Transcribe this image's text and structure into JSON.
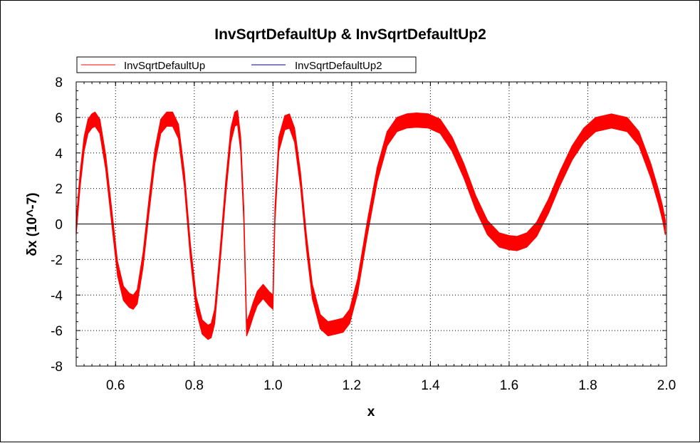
{
  "chart_data": {
    "type": "line",
    "title": "InvSqrtDefaultUp & InvSqrtDefaultUp2",
    "xlabel": "x",
    "ylabel": "δx (10^-7)",
    "xlim": [
      0.5,
      2.0
    ],
    "ylim": [
      -8,
      8
    ],
    "x_ticks": [
      "0.6",
      "0.8",
      "1.0",
      "1.2",
      "1.4",
      "1.6",
      "1.8",
      "2.0"
    ],
    "x_tick_values": [
      0.6,
      0.8,
      1.0,
      1.2,
      1.4,
      1.6,
      1.8,
      2.0
    ],
    "y_ticks": [
      "8",
      "6",
      "4",
      "2",
      "0",
      "-2",
      "-4",
      "-6",
      "-8"
    ],
    "y_tick_values": [
      8,
      6,
      4,
      2,
      0,
      -2,
      -4,
      -6,
      -8
    ],
    "grid": true,
    "zero_line": true,
    "legend_position": "top-left",
    "series": [
      {
        "name": "InvSqrtDefaultUp",
        "color": "#ff0000",
        "band_width": 0.8,
        "x": [
          0.5,
          0.51,
          0.52,
          0.53,
          0.54,
          0.548,
          0.56,
          0.575,
          0.59,
          0.605,
          0.62,
          0.635,
          0.645,
          0.655,
          0.67,
          0.685,
          0.7,
          0.715,
          0.73,
          0.745,
          0.76,
          0.775,
          0.79,
          0.805,
          0.82,
          0.835,
          0.843,
          0.852,
          0.865,
          0.88,
          0.893,
          0.903,
          0.91,
          0.918,
          0.926,
          0.933,
          0.94,
          0.95,
          0.96,
          0.975,
          0.99,
          1.0,
          1.005,
          1.015,
          1.03,
          1.042,
          1.055,
          1.07,
          1.085,
          1.1,
          1.12,
          1.14,
          1.16,
          1.178,
          1.195,
          1.215,
          1.24,
          1.265,
          1.29,
          1.315,
          1.34,
          1.365,
          1.395,
          1.425,
          1.455,
          1.485,
          1.515,
          1.545,
          1.575,
          1.6,
          1.62,
          1.645,
          1.67,
          1.7,
          1.73,
          1.76,
          1.79,
          1.82,
          1.86,
          1.9,
          1.93,
          1.96,
          1.98,
          1.99,
          1.997
        ],
        "y": [
          -0.2,
          2.5,
          4.5,
          5.5,
          5.8,
          5.9,
          5.5,
          3.5,
          0.5,
          -2.5,
          -3.9,
          -4.3,
          -4.4,
          -4.1,
          -2.0,
          1.0,
          3.8,
          5.5,
          5.9,
          5.9,
          5.2,
          2.5,
          -1.5,
          -4.5,
          -5.8,
          -6.1,
          -6.0,
          -5.2,
          -2.0,
          2.0,
          5.0,
          5.9,
          6.0,
          4.5,
          0.5,
          -5.9,
          -5.5,
          -4.8,
          -4.2,
          -3.8,
          -4.2,
          -4.4,
          0.5,
          4.5,
          5.7,
          5.8,
          5.0,
          2.5,
          -1.0,
          -3.8,
          -5.5,
          -5.9,
          -5.8,
          -5.7,
          -5.2,
          -3.5,
          -0.2,
          2.8,
          4.8,
          5.6,
          5.8,
          5.85,
          5.8,
          5.5,
          4.5,
          3.0,
          1.2,
          -0.2,
          -0.9,
          -1.05,
          -1.1,
          -0.9,
          -0.3,
          1.0,
          2.6,
          4.0,
          5.0,
          5.6,
          5.8,
          5.6,
          4.8,
          3.0,
          1.5,
          0.6,
          -0.2
        ]
      },
      {
        "name": "InvSqrtDefaultUp2",
        "color": "#000080"
      }
    ]
  }
}
